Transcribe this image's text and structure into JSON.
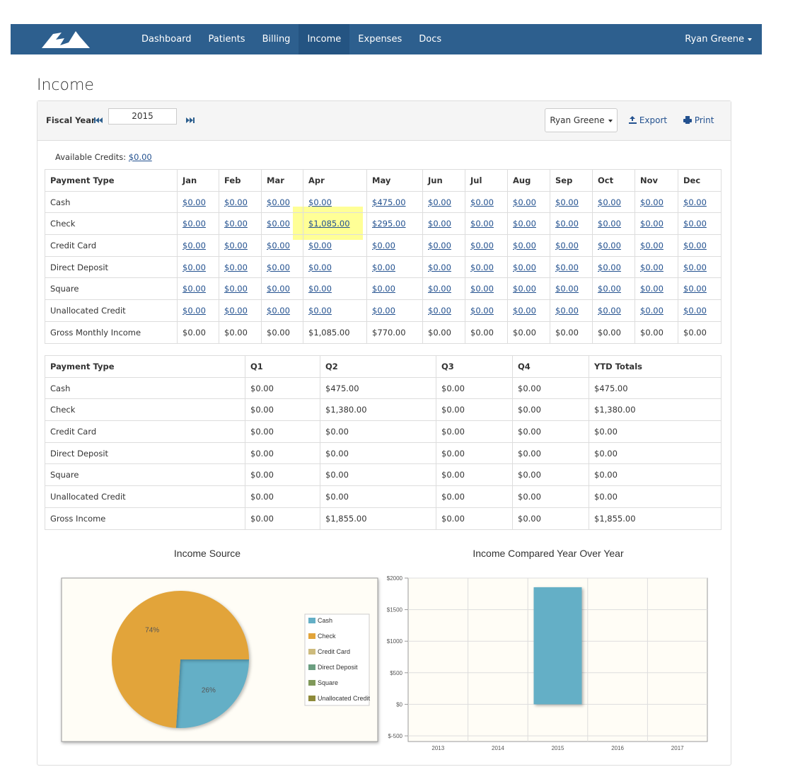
{
  "nav": {
    "items": [
      "Dashboard",
      "Patients",
      "Billing",
      "Income",
      "Expenses",
      "Docs"
    ],
    "active": 3,
    "user": "Ryan Greene"
  },
  "page_title": "Income",
  "toolbar": {
    "fiscal_year_label": "Fiscal Year",
    "fiscal_year": "2015",
    "user_button": "Ryan Greene",
    "export": "Export",
    "print": "Print"
  },
  "credits": {
    "label": "Available Credits:",
    "value": "$0.00"
  },
  "monthly_table": {
    "header": [
      "Payment Type",
      "Jan",
      "Feb",
      "Mar",
      "Apr",
      "May",
      "Jun",
      "Jul",
      "Aug",
      "Sep",
      "Oct",
      "Nov",
      "Dec"
    ],
    "rows": [
      [
        "Cash",
        "$0.00",
        "$0.00",
        "$0.00",
        "$0.00",
        "$475.00",
        "$0.00",
        "$0.00",
        "$0.00",
        "$0.00",
        "$0.00",
        "$0.00",
        "$0.00"
      ],
      [
        "Check",
        "$0.00",
        "$0.00",
        "$0.00",
        "$1,085.00",
        "$295.00",
        "$0.00",
        "$0.00",
        "$0.00",
        "$0.00",
        "$0.00",
        "$0.00",
        "$0.00"
      ],
      [
        "Credit Card",
        "$0.00",
        "$0.00",
        "$0.00",
        "$0.00",
        "$0.00",
        "$0.00",
        "$0.00",
        "$0.00",
        "$0.00",
        "$0.00",
        "$0.00",
        "$0.00"
      ],
      [
        "Direct Deposit",
        "$0.00",
        "$0.00",
        "$0.00",
        "$0.00",
        "$0.00",
        "$0.00",
        "$0.00",
        "$0.00",
        "$0.00",
        "$0.00",
        "$0.00",
        "$0.00"
      ],
      [
        "Square",
        "$0.00",
        "$0.00",
        "$0.00",
        "$0.00",
        "$0.00",
        "$0.00",
        "$0.00",
        "$0.00",
        "$0.00",
        "$0.00",
        "$0.00",
        "$0.00"
      ],
      [
        "Unallocated Credit",
        "$0.00",
        "$0.00",
        "$0.00",
        "$0.00",
        "$0.00",
        "$0.00",
        "$0.00",
        "$0.00",
        "$0.00",
        "$0.00",
        "$0.00",
        "$0.00"
      ],
      [
        "Gross Monthly Income",
        "$0.00",
        "$0.00",
        "$0.00",
        "$1,085.00",
        "$770.00",
        "$0.00",
        "$0.00",
        "$0.00",
        "$0.00",
        "$0.00",
        "$0.00",
        "$0.00"
      ]
    ]
  },
  "quarterly_table": {
    "header": [
      "Payment Type",
      "Q1",
      "Q2",
      "Q3",
      "Q4",
      "YTD Totals"
    ],
    "rows": [
      [
        "Cash",
        "$0.00",
        "$475.00",
        "$0.00",
        "$0.00",
        "$475.00"
      ],
      [
        "Check",
        "$0.00",
        "$1,380.00",
        "$0.00",
        "$0.00",
        "$1,380.00"
      ],
      [
        "Credit Card",
        "$0.00",
        "$0.00",
        "$0.00",
        "$0.00",
        "$0.00"
      ],
      [
        "Direct Deposit",
        "$0.00",
        "$0.00",
        "$0.00",
        "$0.00",
        "$0.00"
      ],
      [
        "Square",
        "$0.00",
        "$0.00",
        "$0.00",
        "$0.00",
        "$0.00"
      ],
      [
        "Unallocated Credit",
        "$0.00",
        "$0.00",
        "$0.00",
        "$0.00",
        "$0.00"
      ],
      [
        "Gross Income",
        "$0.00",
        "$1,855.00",
        "$0.00",
        "$0.00",
        "$1,855.00"
      ]
    ]
  },
  "chart_data": [
    {
      "type": "pie",
      "title": "Income Source",
      "categories": [
        "Cash",
        "Check",
        "Credit Card",
        "Direct Deposit",
        "Square",
        "Unallocated Credit"
      ],
      "values": [
        26,
        74,
        0,
        0,
        0,
        0
      ],
      "value_labels": [
        "26%",
        "74%",
        null,
        null,
        null,
        null
      ],
      "colors": [
        "#64afc6",
        "#e2a43a",
        "#cdbb7d",
        "#6b9e80",
        "#80995a",
        "#8e8a3a"
      ]
    },
    {
      "type": "bar",
      "title": "Income Compared Year Over Year",
      "categories": [
        "2013",
        "2014",
        "2015",
        "2016",
        "2017"
      ],
      "values": [
        0,
        0,
        1855,
        0,
        0
      ],
      "color": "#64afc6",
      "ylim": [
        -500,
        2000
      ],
      "yticks": [
        {
          "value": 2000,
          "label": "$2000"
        },
        {
          "value": 1500,
          "label": "$1500"
        },
        {
          "value": 1000,
          "label": "$1000"
        },
        {
          "value": 500,
          "label": "$500"
        },
        {
          "value": 0,
          "label": "$0"
        },
        {
          "value": -500,
          "label": "$-500"
        }
      ],
      "grid": true
    }
  ]
}
